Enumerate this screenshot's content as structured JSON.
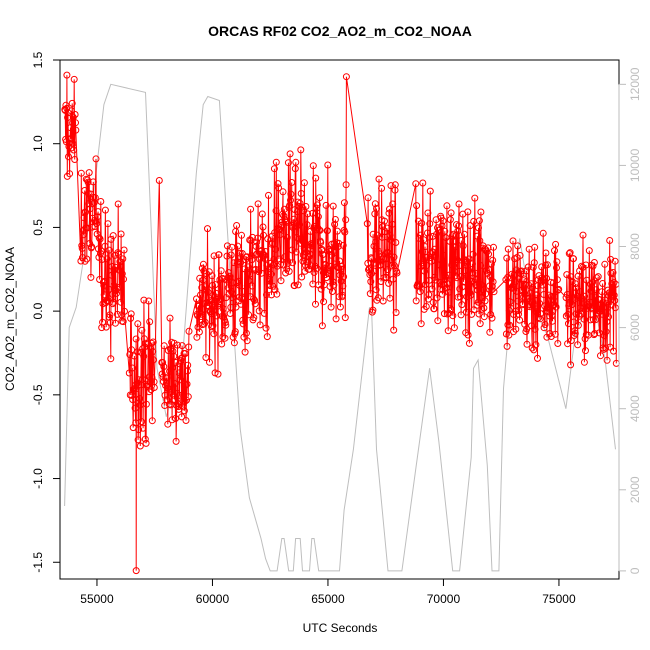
{
  "chart_data": {
    "type": "line",
    "title": "ORCAS RF02 CO2_AO2_m_CO2_NOAA",
    "xlabel": "UTC Seconds",
    "ylabel": "CO2_AO2_m_CO2_NOAA",
    "xlim": [
      53400,
      77600
    ],
    "ylim": [
      -1.6,
      1.5
    ],
    "x_ticks": [
      55000,
      60000,
      65000,
      70000,
      75000
    ],
    "y_ticks": [
      -1.5,
      -1.0,
      -0.5,
      0.0,
      0.5,
      1.0,
      1.5
    ],
    "y_tick_labels": [
      "-1.5",
      "-1.0",
      "-0.5",
      "0.0",
      "0.5",
      "1.0",
      "1.5"
    ],
    "y2lim": [
      -200,
      12600
    ],
    "y2_ticks": [
      0,
      2000,
      4000,
      6000,
      8000,
      10000,
      12000
    ],
    "series": [
      {
        "color": "#ff0000",
        "marker": "open-circle",
        "segments": [
          {
            "x0": 53600,
            "x1": 54100,
            "level": 1.05,
            "spread": 0.28
          },
          {
            "x0": 54300,
            "x1": 55200,
            "level": 0.55,
            "spread": 0.3
          },
          {
            "x0": 55200,
            "x1": 56200,
            "level": 0.15,
            "spread": 0.4
          },
          {
            "x0": 56400,
            "x1": 57500,
            "level": -0.35,
            "spread": 0.38
          },
          {
            "x0": 57800,
            "x1": 59000,
            "level": -0.4,
            "spread": 0.32
          },
          {
            "x0": 59300,
            "x1": 60500,
            "level": 0.05,
            "spread": 0.32
          },
          {
            "x0": 60500,
            "x1": 61500,
            "level": 0.15,
            "spread": 0.38
          },
          {
            "x0": 61500,
            "x1": 62600,
            "level": 0.25,
            "spread": 0.38
          },
          {
            "x0": 62600,
            "x1": 64000,
            "level": 0.45,
            "spread": 0.4
          },
          {
            "x0": 64000,
            "x1": 65800,
            "level": 0.35,
            "spread": 0.4
          },
          {
            "x0": 66700,
            "x1": 68000,
            "level": 0.35,
            "spread": 0.38
          },
          {
            "x0": 68800,
            "x1": 70200,
            "level": 0.3,
            "spread": 0.36
          },
          {
            "x0": 70200,
            "x1": 72200,
            "level": 0.25,
            "spread": 0.36
          },
          {
            "x0": 72700,
            "x1": 75000,
            "level": 0.1,
            "spread": 0.36
          },
          {
            "x0": 75300,
            "x1": 77500,
            "level": 0.05,
            "spread": 0.34
          }
        ],
        "outliers": [
          {
            "x": 56700,
            "y": -1.55
          },
          {
            "x": 53700,
            "y": 1.41
          },
          {
            "x": 65800,
            "y": 1.4
          },
          {
            "x": 57700,
            "y": 0.78
          }
        ]
      },
      {
        "color": "#bebebe",
        "axis": "right",
        "x": [
          53600,
          53800,
          54100,
          54500,
          54900,
          55300,
          55600,
          57100,
          57600,
          58000,
          58700,
          59300,
          59600,
          59800,
          60300,
          60800,
          61200,
          61600,
          62100,
          62300,
          62500,
          62600,
          62800,
          63000,
          63100,
          63300,
          63400,
          63500,
          63600,
          63800,
          63900,
          64000,
          64200,
          64300,
          64400,
          64600,
          64700,
          65300,
          65400,
          65500,
          65700,
          66100,
          66700,
          66800,
          66900,
          67100,
          67600,
          68200,
          68800,
          69400,
          69800,
          70400,
          70700,
          71200,
          71300,
          71500,
          71900,
          72100,
          72400,
          72600,
          72800,
          73000,
          73300,
          73700,
          74500,
          75300,
          75700,
          76200,
          76600,
          77000,
          77450
        ],
        "y": [
          1600,
          6000,
          6500,
          8000,
          9500,
          11500,
          12000,
          11800,
          5000,
          3800,
          5200,
          9800,
          11500,
          11700,
          11600,
          7000,
          3500,
          1800,
          800,
          300,
          0,
          0,
          0,
          800,
          800,
          0,
          0,
          0,
          800,
          800,
          0,
          0,
          0,
          800,
          800,
          0,
          0,
          0,
          0,
          0,
          1500,
          3000,
          6000,
          6500,
          6300,
          3000,
          0,
          0,
          2500,
          5000,
          3200,
          0,
          0,
          2800,
          5000,
          5200,
          2600,
          0,
          0,
          4500,
          5800,
          6800,
          8200,
          6800,
          5800,
          4000,
          5800,
          6500,
          6400,
          5200,
          3000
        ]
      }
    ]
  }
}
